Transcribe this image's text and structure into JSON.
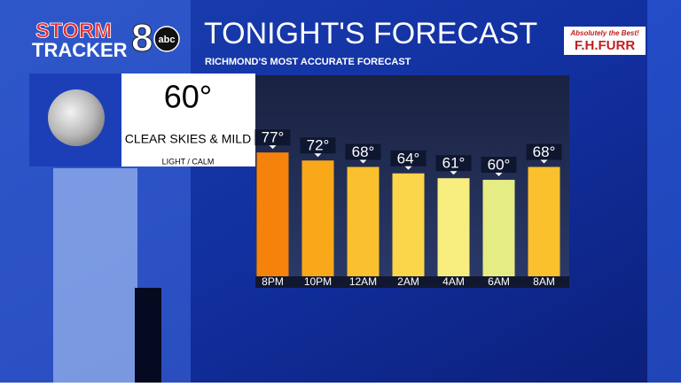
{
  "logo": {
    "line1": "STORM",
    "line2": "TRACKER",
    "number": "8",
    "network": "abc"
  },
  "sponsor": {
    "tagline": "Absolutely the Best!",
    "name": "F.H.FURR"
  },
  "current": {
    "temperature": "60°",
    "condition": "CLEAR SKIES & MILD",
    "wind": "LIGHT / CALM"
  },
  "chart_data": {
    "type": "bar",
    "title": "TONIGHT'S FORECAST",
    "subtitle": "RICHMOND'S MOST ACCURATE FORECAST",
    "categories": [
      "8PM",
      "10PM",
      "12AM",
      "2AM",
      "4AM",
      "6AM",
      "8AM"
    ],
    "values": [
      77,
      72,
      68,
      64,
      61,
      60,
      68
    ],
    "value_labels": [
      "77°",
      "72°",
      "68°",
      "64°",
      "61°",
      "60°",
      "68°"
    ],
    "colors": [
      "#f5820a",
      "#f9a81a",
      "#fbc02d",
      "#fbd54a",
      "#f8ee80",
      "#e6ec84",
      "#fbc02d"
    ],
    "ylim": [
      0,
      125
    ]
  }
}
